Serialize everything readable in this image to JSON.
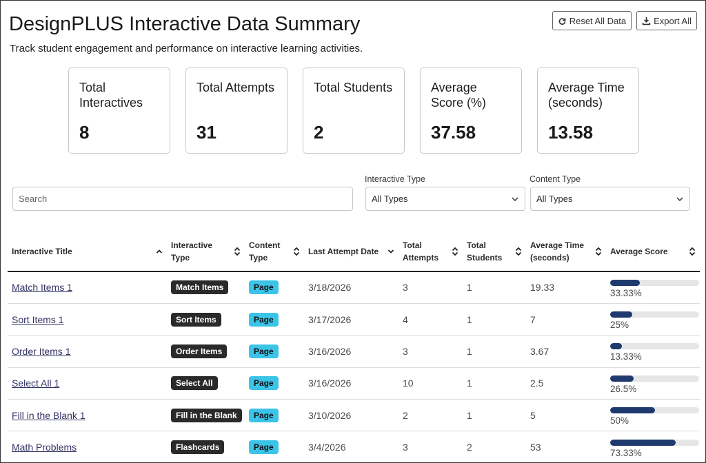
{
  "header": {
    "title": "DesignPLUS Interactive Data Summary",
    "subtitle": "Track student engagement and performance on interactive learning activities.",
    "reset_label": "Reset All Data",
    "export_label": "Export All"
  },
  "stats": [
    {
      "label": "Total Interactives",
      "value": "8"
    },
    {
      "label": "Total Attempts",
      "value": "31"
    },
    {
      "label": "Total Students",
      "value": "2"
    },
    {
      "label": "Average Score (%)",
      "value": "37.58"
    },
    {
      "label": "Average Time (seconds)",
      "value": "13.58"
    }
  ],
  "filters": {
    "search_placeholder": "Search",
    "interactive_type_label": "Interactive Type",
    "interactive_type_value": "All Types",
    "content_type_label": "Content Type",
    "content_type_value": "All Types"
  },
  "table": {
    "columns": [
      {
        "label": "Interactive Title"
      },
      {
        "label": "Interactive Type"
      },
      {
        "label": "Content Type"
      },
      {
        "label": "Last Attempt Date"
      },
      {
        "label": "Total Attempts"
      },
      {
        "label": "Total Students"
      },
      {
        "label": "Average Time (seconds)"
      },
      {
        "label": "Average Score"
      }
    ],
    "rows": [
      {
        "title": "Match Items 1",
        "type": "Match Items",
        "content": "Page",
        "date": "3/18/2026",
        "attempts": "3",
        "students": "1",
        "time": "19.33",
        "score": 33.33,
        "score_text": "33.33%"
      },
      {
        "title": "Sort Items 1",
        "type": "Sort Items",
        "content": "Page",
        "date": "3/17/2026",
        "attempts": "4",
        "students": "1",
        "time": "7",
        "score": 25,
        "score_text": "25%"
      },
      {
        "title": "Order Items 1",
        "type": "Order Items",
        "content": "Page",
        "date": "3/16/2026",
        "attempts": "3",
        "students": "1",
        "time": "3.67",
        "score": 13.33,
        "score_text": "13.33%"
      },
      {
        "title": "Select All 1",
        "type": "Select All",
        "content": "Page",
        "date": "3/16/2026",
        "attempts": "10",
        "students": "1",
        "time": "2.5",
        "score": 26.5,
        "score_text": "26.5%"
      },
      {
        "title": "Fill in the Blank 1",
        "type": "Fill in the Blank",
        "content": "Page",
        "date": "3/10/2026",
        "attempts": "2",
        "students": "1",
        "time": "5",
        "score": 50,
        "score_text": "50%"
      },
      {
        "title": "Math Problems",
        "type": "Flashcards",
        "content": "Page",
        "date": "3/4/2026",
        "attempts": "3",
        "students": "2",
        "time": "53",
        "score": 73.33,
        "score_text": "73.33%"
      }
    ]
  },
  "colors": {
    "bar_fill": "#1e3a6e",
    "bar_track": "#e6e6e6",
    "page_badge": "#3cc3e8",
    "type_badge": "#2a2a2a"
  },
  "icons": {
    "reset": "refresh-icon",
    "export": "download-icon",
    "sort": "sort-icon",
    "sort_active": "chevron-down-icon"
  }
}
